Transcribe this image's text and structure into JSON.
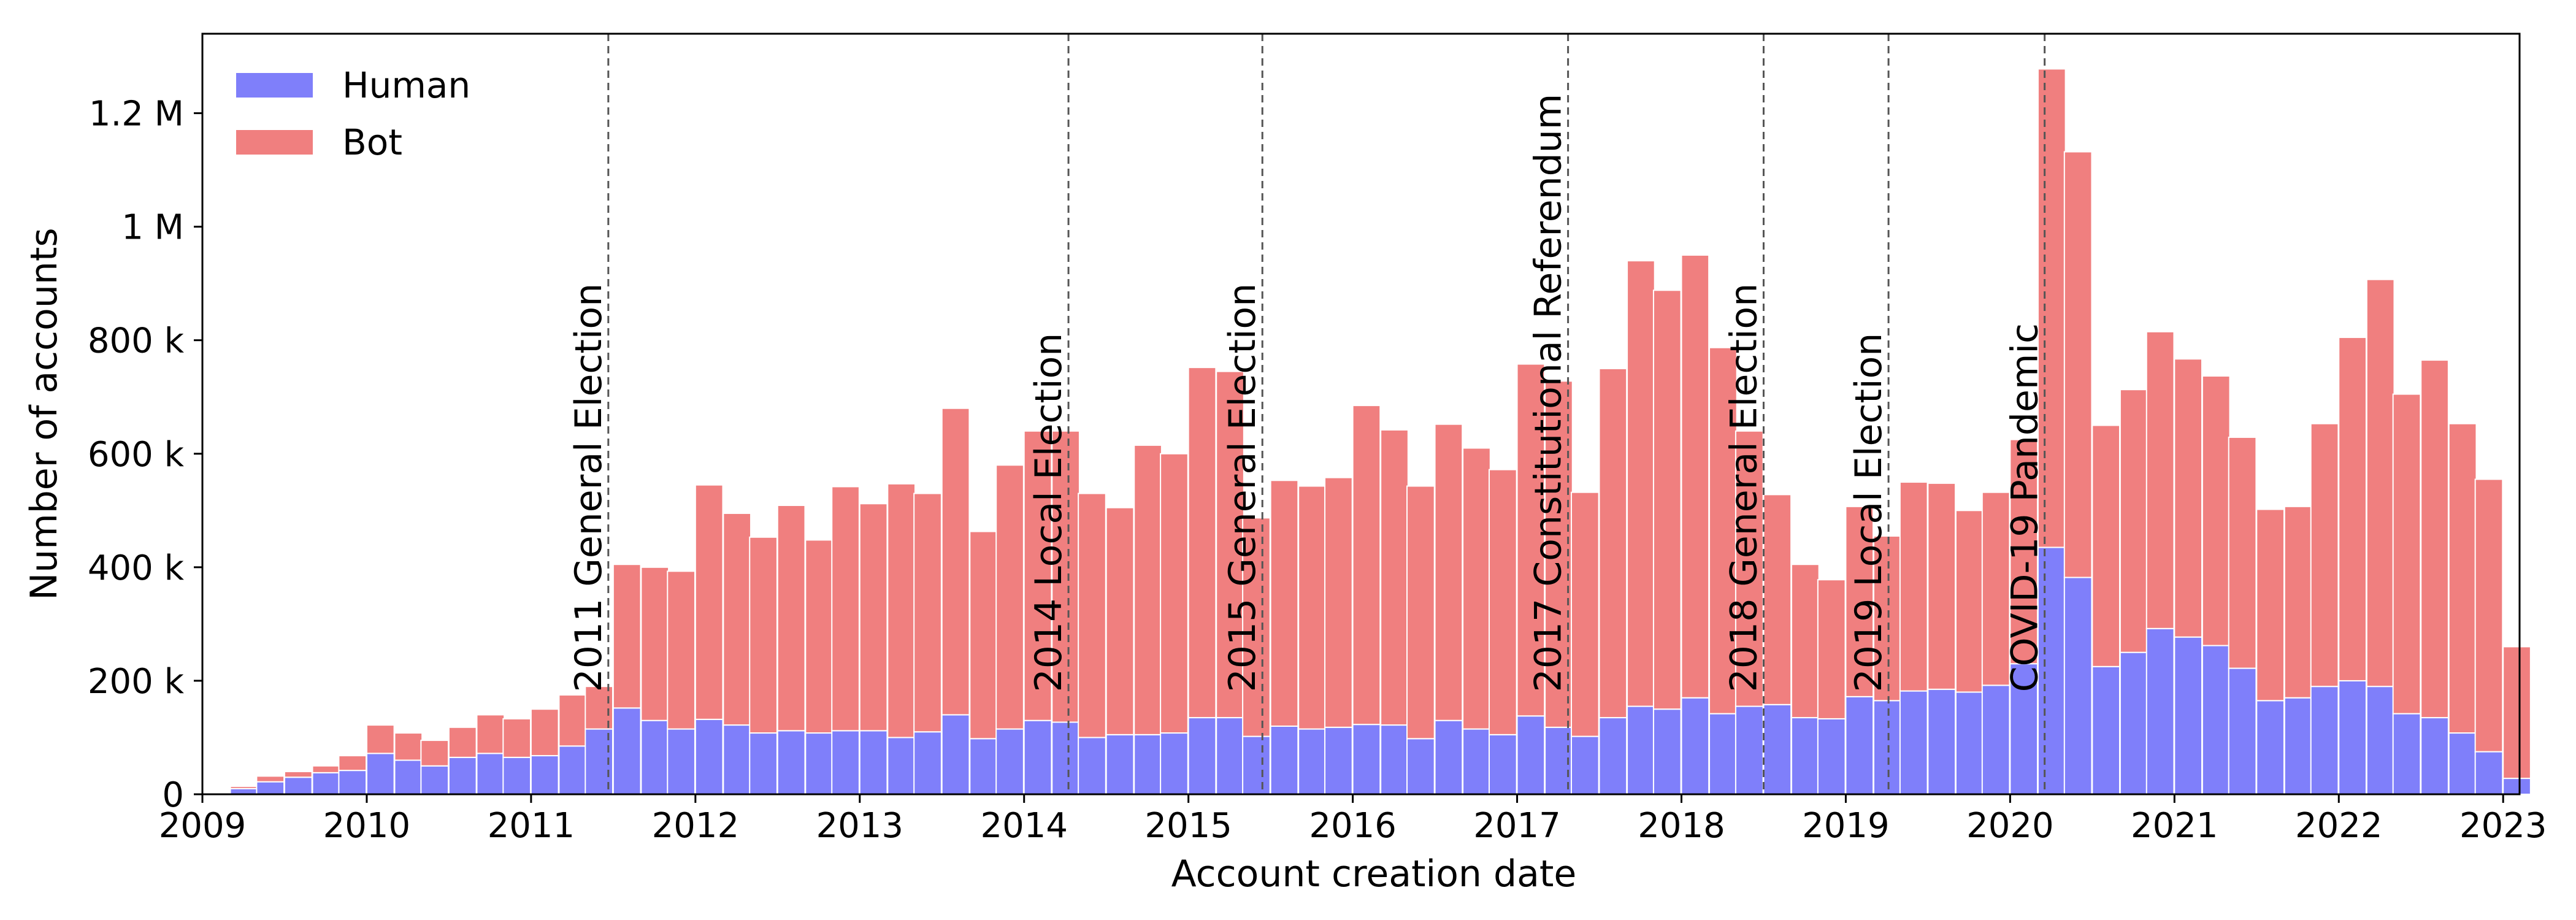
{
  "chart_data": {
    "type": "bar",
    "stacked": true,
    "xlabel": "Account creation date",
    "ylabel": "Number of accounts",
    "xlim": [
      2009.0,
      2023.1
    ],
    "ylim": [
      0,
      1.34
    ],
    "bin_width_years": 0.1667,
    "x_ticks": [
      2009,
      2010,
      2011,
      2012,
      2013,
      2014,
      2015,
      2016,
      2017,
      2018,
      2019,
      2020,
      2021,
      2022,
      2023
    ],
    "x_tick_labels": [
      "2009",
      "2010",
      "2011",
      "2012",
      "2013",
      "2014",
      "2015",
      "2016",
      "2017",
      "2018",
      "2019",
      "2020",
      "2021",
      "2022",
      "2023"
    ],
    "y_ticks": [
      0,
      0.2,
      0.4,
      0.6,
      0.8,
      1.0,
      1.2
    ],
    "y_tick_labels": [
      "0",
      "200 k",
      "400 k",
      "600 k",
      "800 k",
      "1 M",
      "1.2 M"
    ],
    "y_unit": "millions of accounts",
    "legend_position": "top-left",
    "colors": {
      "Human": "#7f7ffa",
      "Bot": "#f07f7f",
      "event_line": "#555555"
    },
    "x": [
      2009.17,
      2009.33,
      2009.5,
      2009.67,
      2009.83,
      2010.0,
      2010.17,
      2010.33,
      2010.5,
      2010.67,
      2010.83,
      2011.0,
      2011.17,
      2011.33,
      2011.5,
      2011.67,
      2011.83,
      2012.0,
      2012.17,
      2012.33,
      2012.5,
      2012.67,
      2012.83,
      2013.0,
      2013.17,
      2013.33,
      2013.5,
      2013.67,
      2013.83,
      2014.0,
      2014.17,
      2014.33,
      2014.5,
      2014.67,
      2014.83,
      2015.0,
      2015.17,
      2015.33,
      2015.5,
      2015.67,
      2015.83,
      2016.0,
      2016.17,
      2016.33,
      2016.5,
      2016.67,
      2016.83,
      2017.0,
      2017.17,
      2017.33,
      2017.5,
      2017.67,
      2017.83,
      2018.0,
      2018.17,
      2018.33,
      2018.5,
      2018.67,
      2018.83,
      2019.0,
      2019.17,
      2019.33,
      2019.5,
      2019.67,
      2019.83,
      2020.0,
      2020.17,
      2020.33,
      2020.5,
      2020.67,
      2020.83,
      2021.0,
      2021.17,
      2021.33,
      2021.5,
      2021.67,
      2021.83,
      2022.0,
      2022.17,
      2022.33,
      2022.5,
      2022.67,
      2022.83,
      2023.0
    ],
    "series": [
      {
        "name": "Human",
        "values": [
          0.01,
          0.022,
          0.03,
          0.038,
          0.042,
          0.072,
          0.06,
          0.05,
          0.065,
          0.072,
          0.065,
          0.068,
          0.085,
          0.115,
          0.152,
          0.13,
          0.115,
          0.132,
          0.122,
          0.108,
          0.112,
          0.108,
          0.112,
          0.112,
          0.1,
          0.11,
          0.14,
          0.098,
          0.115,
          0.13,
          0.127,
          0.1,
          0.105,
          0.105,
          0.108,
          0.135,
          0.135,
          0.102,
          0.12,
          0.115,
          0.118,
          0.123,
          0.122,
          0.098,
          0.13,
          0.115,
          0.105,
          0.138,
          0.118,
          0.102,
          0.135,
          0.155,
          0.15,
          0.17,
          0.142,
          0.155,
          0.158,
          0.135,
          0.133,
          0.172,
          0.165,
          0.182,
          0.185,
          0.18,
          0.192,
          0.23,
          0.435,
          0.382,
          0.225,
          0.25,
          0.292,
          0.277,
          0.262,
          0.222,
          0.165,
          0.17,
          0.19,
          0.2,
          0.19,
          0.142,
          0.135,
          0.108,
          0.075,
          0.028
        ]
      },
      {
        "name": "Bot",
        "values": [
          0.004,
          0.01,
          0.01,
          0.012,
          0.026,
          0.05,
          0.048,
          0.045,
          0.053,
          0.068,
          0.068,
          0.082,
          0.09,
          0.075,
          0.253,
          0.27,
          0.278,
          0.413,
          0.373,
          0.345,
          0.397,
          0.34,
          0.43,
          0.4,
          0.447,
          0.42,
          0.54,
          0.365,
          0.465,
          0.51,
          0.513,
          0.43,
          0.4,
          0.51,
          0.492,
          0.617,
          0.61,
          0.385,
          0.433,
          0.428,
          0.44,
          0.562,
          0.52,
          0.445,
          0.522,
          0.495,
          0.467,
          0.62,
          0.61,
          0.43,
          0.615,
          0.785,
          0.738,
          0.78,
          0.645,
          0.485,
          0.37,
          0.27,
          0.245,
          0.335,
          0.29,
          0.368,
          0.363,
          0.32,
          0.34,
          0.395,
          0.843,
          0.75,
          0.425,
          0.463,
          0.523,
          0.49,
          0.475,
          0.407,
          0.337,
          0.337,
          0.463,
          0.605,
          0.717,
          0.563,
          0.63,
          0.545,
          0.48,
          0.232
        ]
      }
    ],
    "events": [
      {
        "x": 2011.47,
        "label": "2011 General Election"
      },
      {
        "x": 2014.27,
        "label": "2014 Local Election"
      },
      {
        "x": 2015.45,
        "label": "2015 General Election"
      },
      {
        "x": 2017.31,
        "label": "2017 Constitutional Referendum"
      },
      {
        "x": 2018.5,
        "label": "2018 General Election"
      },
      {
        "x": 2019.26,
        "label": "2019 Local Election"
      },
      {
        "x": 2020.21,
        "label": "COVID-19 Pandemic"
      }
    ]
  }
}
